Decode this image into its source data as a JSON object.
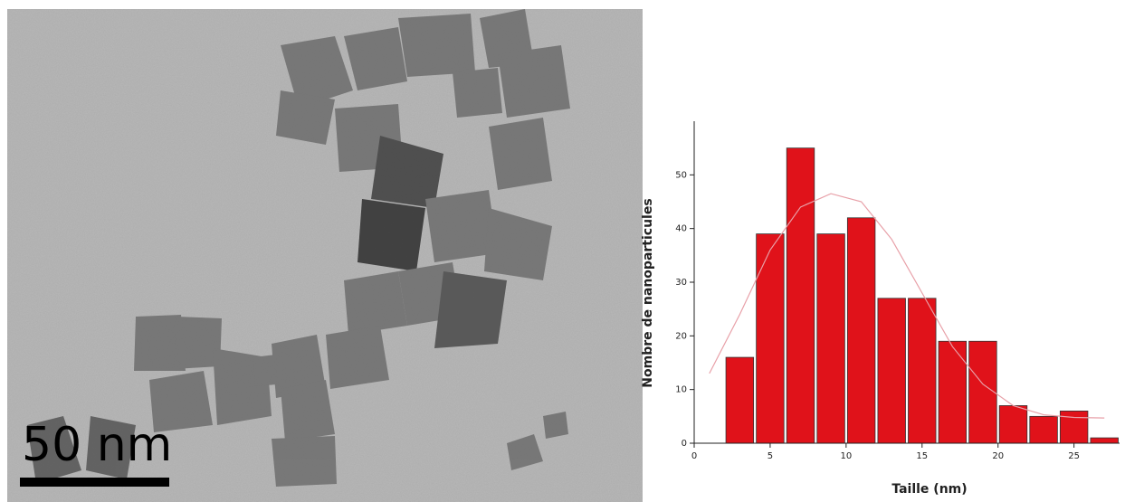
{
  "micrograph": {
    "scale_label": "50 nm"
  },
  "chart_data": {
    "type": "histogram",
    "x_label": "Taille (nm)",
    "y_label": "Nombre de nanoparticules",
    "bins": [
      2,
      4,
      6,
      8,
      10,
      12,
      14,
      16,
      18,
      20,
      22,
      24,
      26,
      28
    ],
    "values": [
      16,
      39,
      55,
      39,
      42,
      27,
      27,
      19,
      19,
      7,
      5,
      6,
      1
    ],
    "color": "#e0121a",
    "fit": {
      "color": "#e8a0a8",
      "x": [
        1,
        3,
        5,
        7,
        9,
        11,
        13,
        15,
        17,
        19,
        21,
        23,
        25,
        27
      ],
      "values": [
        13,
        24,
        36,
        44,
        46.5,
        45,
        38,
        28,
        18,
        11,
        7,
        5.3,
        4.8,
        4.7
      ]
    },
    "xlim": [
      0,
      28
    ],
    "ylim": [
      0,
      60
    ],
    "xticks": [
      0,
      5,
      10,
      15,
      20,
      25
    ],
    "yticks": [
      0,
      10,
      20,
      30,
      40,
      50
    ]
  }
}
